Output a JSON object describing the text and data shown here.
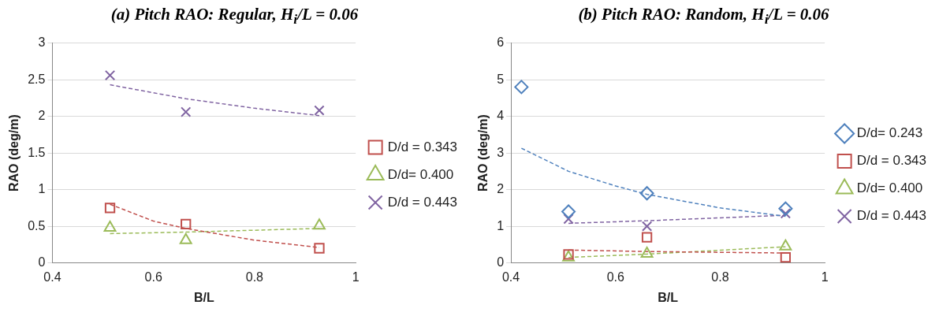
{
  "chart_data": [
    {
      "type": "scatter",
      "title": "(a) Pitch RAO: Regular, H$_{i}$/L = 0.06",
      "xlabel": "B/L",
      "ylabel": "RAO (deg/m)",
      "x": [
        0.514,
        0.664,
        0.928
      ],
      "xlim": [
        0.4,
        1
      ],
      "xticks": [
        0.4,
        0.6,
        0.8,
        1
      ],
      "ylim": [
        0,
        3
      ],
      "yticks": [
        0,
        0.5,
        1,
        1.5,
        2,
        2.5,
        3
      ],
      "grid": "y",
      "legend": "right",
      "series": [
        {
          "name": "D/d = 0.343",
          "color": "#c0504d",
          "marker": "square",
          "values": [
            0.75,
            0.53,
            0.2
          ]
        },
        {
          "name": "D/d= 0.400",
          "color": "#9bbb59",
          "marker": "triangle",
          "values": [
            0.48,
            0.31,
            0.51
          ]
        },
        {
          "name": "D/d = 0.443",
          "color": "#8064a2",
          "marker": "cross",
          "values": [
            2.56,
            2.06,
            2.08
          ]
        },
        {
          "type": "line",
          "color": "#c0504d",
          "line_style": "dashed",
          "x": [
            0.514,
            0.6,
            0.664,
            0.8,
            0.928
          ],
          "values": [
            0.8,
            0.57,
            0.47,
            0.31,
            0.21
          ]
        },
        {
          "type": "line",
          "color": "#9bbb59",
          "line_style": "dashed",
          "x": [
            0.514,
            0.664,
            0.928
          ],
          "values": [
            0.4,
            0.42,
            0.47
          ]
        },
        {
          "type": "line",
          "color": "#8064a2",
          "line_style": "dashed",
          "x": [
            0.514,
            0.664,
            0.8,
            0.928
          ],
          "values": [
            2.43,
            2.24,
            2.11,
            2.01
          ]
        }
      ]
    },
    {
      "type": "scatter",
      "title": "(b) Pitch RAO: Random, H$_{i}$/L = 0.06",
      "xlabel": "B/L",
      "ylabel": "RAO (deg/m)",
      "x": [
        0.42,
        0.51,
        0.66,
        0.925
      ],
      "xlim": [
        0.4,
        1
      ],
      "xticks": [
        0.4,
        0.6,
        0.8,
        1
      ],
      "ylim": [
        0,
        6
      ],
      "yticks": [
        0,
        1,
        2,
        3,
        4,
        5,
        6
      ],
      "grid": "y",
      "legend": "right",
      "series": [
        {
          "name": "D/d= 0.243",
          "color": "#4f81bd",
          "marker": "diamond",
          "values": [
            4.8,
            1.4,
            1.9,
            1.48
          ]
        },
        {
          "name": "D/d = 0.343",
          "color": "#c0504d",
          "marker": "square",
          "values": [
            null,
            0.23,
            0.7,
            0.15
          ]
        },
        {
          "name": "D/d= 0.400",
          "color": "#9bbb59",
          "marker": "triangle",
          "values": [
            null,
            0.15,
            0.25,
            0.45
          ]
        },
        {
          "name": "D/d = 0.443",
          "color": "#8064a2",
          "marker": "cross",
          "values": [
            null,
            1.2,
            1.0,
            1.35
          ]
        },
        {
          "type": "line",
          "color": "#4f81bd",
          "line_style": "dashed",
          "x": [
            0.42,
            0.51,
            0.6,
            0.66,
            0.8,
            0.925
          ],
          "values": [
            3.13,
            2.5,
            2.1,
            1.87,
            1.5,
            1.27
          ]
        },
        {
          "type": "line",
          "color": "#c0504d",
          "line_style": "dashed",
          "x": [
            0.51,
            0.66,
            0.925
          ],
          "values": [
            0.35,
            0.31,
            0.27
          ]
        },
        {
          "type": "line",
          "color": "#9bbb59",
          "line_style": "dashed",
          "x": [
            0.51,
            0.66,
            0.925
          ],
          "values": [
            0.15,
            0.24,
            0.44
          ]
        },
        {
          "type": "line",
          "color": "#8064a2",
          "line_style": "dashed",
          "x": [
            0.51,
            0.66,
            0.925
          ],
          "values": [
            1.08,
            1.15,
            1.3
          ]
        }
      ]
    }
  ]
}
